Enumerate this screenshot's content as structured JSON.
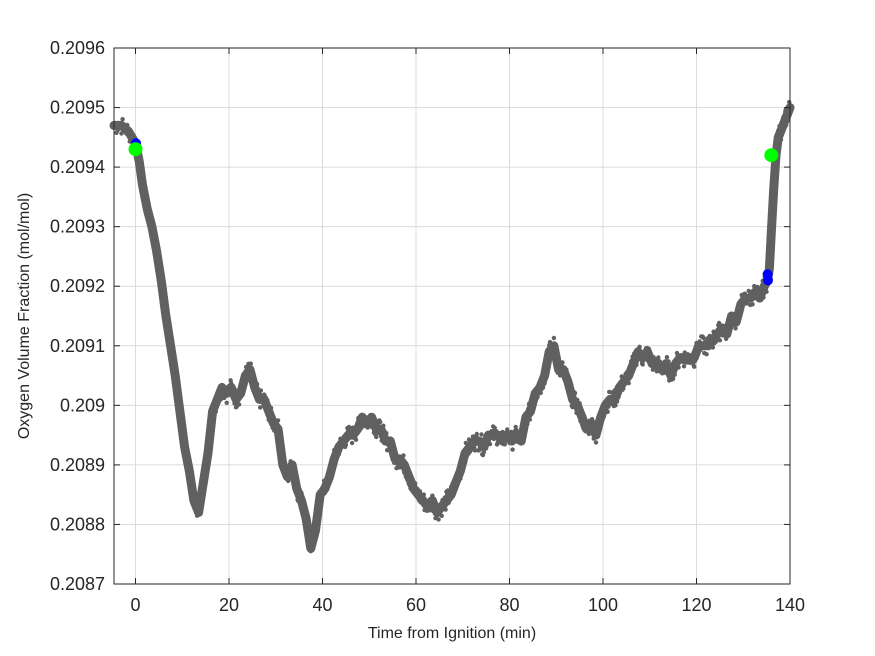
{
  "chart_data": {
    "type": "scatter",
    "title": "",
    "xlabel": "Time from Ignition (min)",
    "ylabel": "Oxygen Volume Fraction (mol/mol)",
    "xlim": [
      -4.6,
      140
    ],
    "ylim": [
      0.2087,
      0.2096
    ],
    "xticks": [
      0,
      20,
      40,
      60,
      80,
      100,
      120,
      140
    ],
    "yticks": [
      0.2087,
      0.2088,
      0.2089,
      0.209,
      0.2091,
      0.2092,
      0.2093,
      0.2094,
      0.2095,
      0.2096
    ],
    "xtick_labels": [
      "0",
      "20",
      "40",
      "60",
      "80",
      "100",
      "120",
      "140"
    ],
    "ytick_labels": [
      "0.2087",
      "0.2088",
      "0.2089",
      "0.209",
      "0.2091",
      "0.2092",
      "0.2093",
      "0.2094",
      "0.2095",
      "0.2096"
    ],
    "grid": true,
    "series": [
      {
        "color": "#606060",
        "marker": "dot-line",
        "x": [
          -4.6,
          -3,
          -1.5,
          0,
          0.8,
          1.5,
          2.5,
          3.5,
          4.5,
          5.5,
          6.5,
          7.5,
          8.5,
          9.5,
          10.5,
          11.5,
          12.5,
          13.5,
          14.5,
          15.5,
          16.5,
          17.5,
          18.5,
          19.5,
          20.5,
          21.5,
          22.5,
          23.5,
          24.5,
          25.5,
          26.5,
          27.5,
          28.5,
          29.5,
          30.5,
          31.5,
          32.5,
          33.5,
          34.5,
          35.5,
          36.5,
          37.5,
          38.5,
          39.5,
          40.5,
          41.5,
          42.5,
          43.5,
          44.5,
          45.5,
          46.5,
          47.5,
          48.5,
          49.5,
          50.5,
          51.5,
          52.5,
          53.5,
          54.5,
          55.5,
          56.5,
          57.5,
          58.5,
          59.5,
          60.5,
          61.5,
          62.5,
          63.5,
          64.5,
          65.5,
          66.5,
          67.5,
          68.5,
          69.5,
          70.5,
          71.5,
          72.5,
          73.5,
          74.5,
          75.5,
          76.5,
          77.5,
          78.5,
          79.5,
          80.5,
          81.5,
          82.5,
          83.5,
          84.5,
          85.5,
          86.5,
          87.5,
          88.5,
          89.5,
          90.5,
          91.5,
          92.5,
          93.5,
          94.5,
          95.5,
          96.5,
          97.5,
          98.5,
          99.5,
          100.5,
          101.5,
          102.5,
          103.5,
          104.5,
          105.5,
          106.5,
          107.5,
          108.5,
          109.5,
          110.5,
          111.5,
          112.5,
          113.5,
          114.5,
          115.5,
          116.5,
          117.5,
          118.5,
          119.5,
          120.5,
          121.5,
          122.5,
          123.5,
          124.5,
          125.5,
          126.5,
          127.5,
          128.5,
          129.5,
          130.5,
          131.5,
          132.5,
          133.5,
          134.5,
          135.2,
          135.6,
          136,
          136.5,
          137,
          137.5,
          138,
          138.5,
          139,
          139.5,
          140
        ],
        "y": [
          0.20947,
          0.20947,
          0.20946,
          0.20944,
          0.20941,
          0.20937,
          0.20933,
          0.2093,
          0.20926,
          0.20921,
          0.20915,
          0.2091,
          0.20905,
          0.20899,
          0.20893,
          0.20889,
          0.20884,
          0.20882,
          0.20887,
          0.20892,
          0.20899,
          0.20901,
          0.20903,
          0.20902,
          0.20903,
          0.20901,
          0.20902,
          0.20905,
          0.20906,
          0.20903,
          0.20901,
          0.20901,
          0.20899,
          0.20897,
          0.20896,
          0.2089,
          0.20888,
          0.2089,
          0.20886,
          0.20884,
          0.20881,
          0.20876,
          0.20879,
          0.20885,
          0.20886,
          0.20888,
          0.20891,
          0.20893,
          0.20894,
          0.20895,
          0.20895,
          0.20896,
          0.20898,
          0.20897,
          0.20898,
          0.20896,
          0.20896,
          0.20894,
          0.20894,
          0.20891,
          0.20891,
          0.2089,
          0.20888,
          0.20886,
          0.20885,
          0.20884,
          0.20883,
          0.20884,
          0.20882,
          0.20883,
          0.20884,
          0.20885,
          0.20887,
          0.20889,
          0.20892,
          0.20893,
          0.20894,
          0.20894,
          0.20893,
          0.20895,
          0.20895,
          0.20895,
          0.20894,
          0.20895,
          0.20894,
          0.20895,
          0.20894,
          0.20898,
          0.20899,
          0.20902,
          0.20903,
          0.20905,
          0.20909,
          0.2091,
          0.20906,
          0.20906,
          0.20904,
          0.20901,
          0.209,
          0.20898,
          0.20896,
          0.20897,
          0.20895,
          0.20898,
          0.209,
          0.20901,
          0.20901,
          0.20903,
          0.20904,
          0.20905,
          0.20907,
          0.20909,
          0.20908,
          0.20909,
          0.20907,
          0.20907,
          0.20906,
          0.20907,
          0.20905,
          0.20907,
          0.20908,
          0.20908,
          0.20908,
          0.20908,
          0.2091,
          0.2091,
          0.2091,
          0.20911,
          0.20912,
          0.20913,
          0.20912,
          0.20915,
          0.20914,
          0.20917,
          0.20918,
          0.20918,
          0.20919,
          0.20918,
          0.2092,
          0.20921,
          0.20923,
          0.20929,
          0.20936,
          0.20942,
          0.20945,
          0.20946,
          0.20947,
          0.20948,
          0.20949,
          0.2095
        ]
      }
    ],
    "markers": [
      {
        "color": "#0000ff",
        "x": 0.1,
        "y": 0.20944
      },
      {
        "color": "#00ff00",
        "x": 0.0,
        "y": 0.20943
      },
      {
        "color": "#0000ff",
        "x": 135.2,
        "y": 0.20922
      },
      {
        "color": "#0000ff",
        "x": 135.3,
        "y": 0.20921
      },
      {
        "color": "#00ff00",
        "x": 136.0,
        "y": 0.20942
      }
    ]
  }
}
